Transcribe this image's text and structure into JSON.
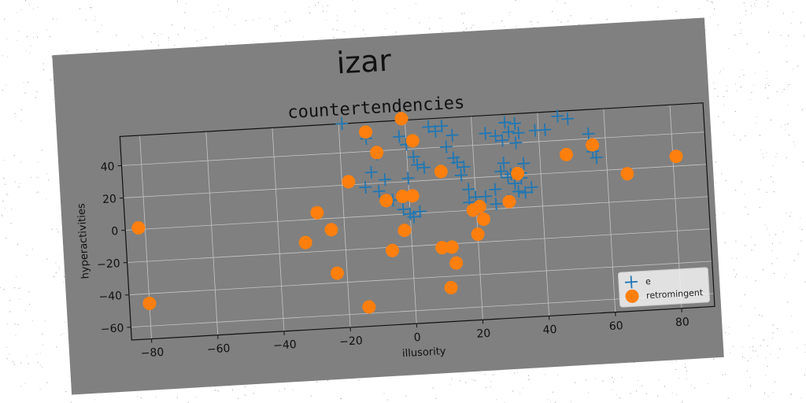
{
  "figure": {
    "suptitle": "izar",
    "background": "#808080",
    "plot_background": "#808080"
  },
  "chart_data": {
    "type": "scatter",
    "title": "countertendencies",
    "xlabel": "illusority",
    "ylabel": "hyperactivities",
    "xlim": [
      -86,
      90
    ],
    "ylim": [
      -68,
      58
    ],
    "xticks": [
      -80,
      -60,
      -40,
      -20,
      0,
      20,
      40,
      60,
      80
    ],
    "yticks": [
      -60,
      -40,
      -20,
      0,
      20,
      40
    ],
    "grid": true,
    "legend": "bottom-right",
    "series": [
      {
        "name": "e",
        "marker": "plus",
        "color": "#1f77b4",
        "points": [
          [
            -19,
            58
          ],
          [
            -12,
            48
          ],
          [
            -9,
            38
          ],
          [
            -11,
            27
          ],
          [
            -7,
            22
          ],
          [
            -13,
            18
          ],
          [
            -9,
            15
          ],
          [
            -5,
            9
          ],
          [
            -2,
            48
          ],
          [
            0,
            43
          ],
          [
            2,
            35
          ],
          [
            3,
            30
          ],
          [
            5,
            28
          ],
          [
            0,
            22
          ],
          [
            -2,
            3
          ],
          [
            0,
            0
          ],
          [
            1,
            -2
          ],
          [
            3,
            1
          ],
          [
            7,
            53
          ],
          [
            9,
            50
          ],
          [
            11,
            53
          ],
          [
            14,
            47
          ],
          [
            12,
            40
          ],
          [
            14,
            33
          ],
          [
            15,
            30
          ],
          [
            17,
            27
          ],
          [
            16,
            22
          ],
          [
            18,
            13
          ],
          [
            20,
            8
          ],
          [
            18,
            5
          ],
          [
            24,
            47
          ],
          [
            27,
            45
          ],
          [
            29,
            42
          ],
          [
            31,
            47
          ],
          [
            30,
            53
          ],
          [
            33,
            52
          ],
          [
            34,
            46
          ],
          [
            33,
            40
          ],
          [
            28,
            23
          ],
          [
            30,
            19
          ],
          [
            32,
            15
          ],
          [
            33,
            10
          ],
          [
            35,
            9
          ],
          [
            34,
            21
          ],
          [
            35,
            27
          ],
          [
            39,
            47
          ],
          [
            42,
            47
          ],
          [
            46,
            55
          ],
          [
            49,
            53
          ],
          [
            55,
            43
          ],
          [
            56,
            32
          ],
          [
            57,
            28
          ],
          [
            29,
            28
          ],
          [
            31,
            21
          ],
          [
            34,
            18
          ],
          [
            26,
            12
          ],
          [
            23,
            8
          ],
          [
            30,
            5
          ],
          [
            37,
            12
          ],
          [
            26,
            3
          ]
        ]
      },
      {
        "name": "retromingent",
        "marker": "circle",
        "color": "#ff7f0e",
        "points": [
          [
            -82,
            1
          ],
          [
            -80,
            -46
          ],
          [
            -28,
            4
          ],
          [
            -24,
            -7
          ],
          [
            -32,
            -14
          ],
          [
            -23,
            -34
          ],
          [
            -14,
            -56
          ],
          [
            -18,
            22
          ],
          [
            -12,
            52
          ],
          [
            -9,
            39
          ],
          [
            -7,
            9
          ],
          [
            -1,
            59
          ],
          [
            2,
            45
          ],
          [
            -2,
            11
          ],
          [
            1,
            11
          ],
          [
            -2,
            -10
          ],
          [
            -6,
            -22
          ],
          [
            10,
            25
          ],
          [
            9,
            -22
          ],
          [
            12,
            -22
          ],
          [
            11,
            -47
          ],
          [
            13,
            -32
          ],
          [
            20,
            -15
          ],
          [
            19,
            0
          ],
          [
            21,
            2
          ],
          [
            22,
            -6
          ],
          [
            30,
            4
          ],
          [
            33,
            21
          ],
          [
            48,
            31
          ],
          [
            56,
            36
          ],
          [
            66,
            17
          ],
          [
            81,
            26
          ]
        ]
      }
    ]
  }
}
